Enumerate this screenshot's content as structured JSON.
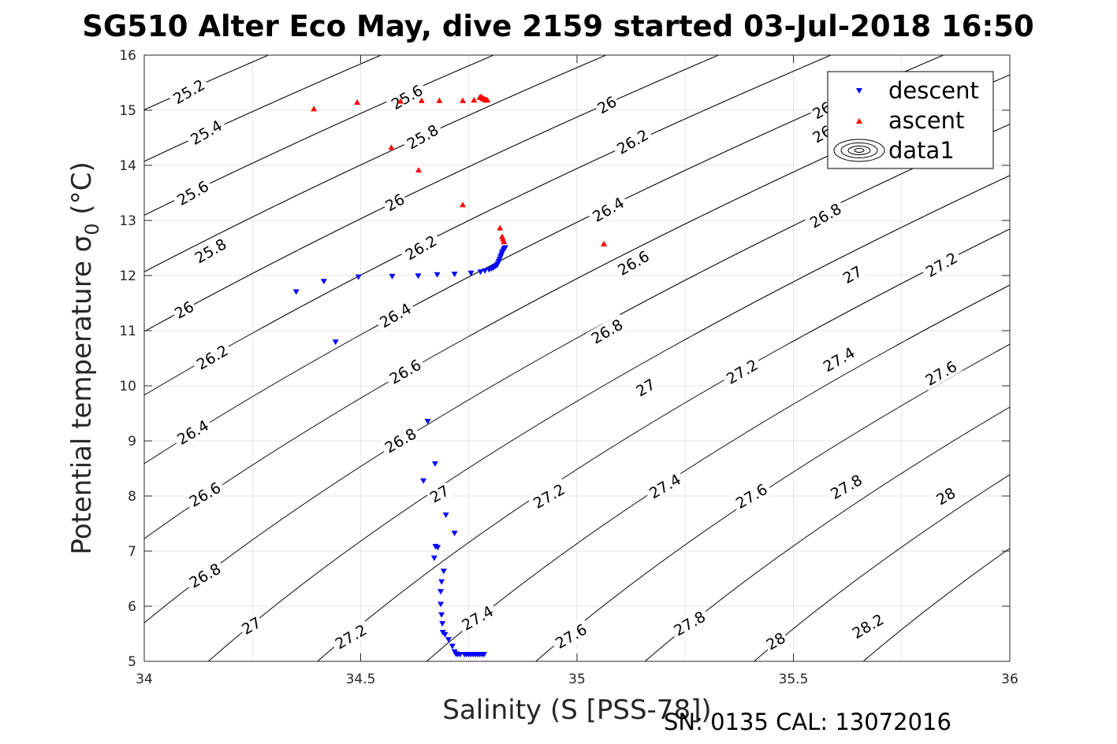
{
  "chart_data": {
    "type": "scatter",
    "title": "SG510 Alter Eco May, dive 2159 started 03-Jul-2018 16:50",
    "xlabel": "Salinity (S [PSS-78])",
    "ylabel": "Potential temperature σ",
    "ylabel_subscript": "0",
    "ylabel_suffix": "(°C)",
    "footer": "SN: 0135  CAL: 13072016",
    "xlim": [
      34,
      36
    ],
    "ylim": [
      5,
      16
    ],
    "xticks": [
      "34",
      "34.5",
      "35",
      "35.5",
      "36"
    ],
    "yticks": [
      "5",
      "6",
      "7",
      "8",
      "9",
      "10",
      "11",
      "12",
      "13",
      "14",
      "15",
      "16"
    ],
    "grid": true,
    "legend_position": "top-right",
    "legend": [
      "descent",
      "ascent",
      "data1"
    ],
    "series": [
      {
        "name": "descent",
        "color": "#0000ff",
        "marker": "triangle-down",
        "x": [
          34.351,
          34.415,
          34.495,
          34.573,
          34.633,
          34.677,
          34.717,
          34.755,
          34.777,
          34.787,
          34.797,
          34.803,
          34.807,
          34.811,
          34.815,
          34.817,
          34.819,
          34.821,
          34.823,
          34.825,
          34.827,
          34.829,
          34.831,
          34.833,
          34.834,
          34.442,
          34.655,
          34.672,
          34.645,
          34.697,
          34.717,
          34.673,
          34.678,
          34.67,
          34.692,
          34.687,
          34.685,
          34.685,
          34.687,
          34.689,
          34.69,
          34.695,
          34.703,
          34.712,
          34.717,
          34.72,
          34.724,
          34.73,
          34.74,
          34.745,
          34.75,
          34.755,
          34.76,
          34.765,
          34.77,
          34.775,
          34.78,
          34.785
        ],
        "y": [
          11.7,
          11.89,
          11.97,
          11.98,
          11.99,
          12.01,
          12.02,
          12.04,
          12.06,
          12.08,
          12.1,
          12.12,
          12.14,
          12.16,
          12.18,
          12.21,
          12.25,
          12.29,
          12.33,
          12.37,
          12.41,
          12.44,
          12.47,
          12.49,
          12.5,
          10.79,
          9.35,
          8.58,
          8.27,
          7.65,
          7.32,
          7.08,
          7.06,
          6.87,
          6.63,
          6.44,
          6.26,
          6.03,
          5.84,
          5.68,
          5.52,
          5.48,
          5.39,
          5.27,
          5.17,
          5.13,
          5.12,
          5.12,
          5.12,
          5.12,
          5.12,
          5.12,
          5.12,
          5.12,
          5.12,
          5.12,
          5.12,
          5.12
        ]
      },
      {
        "name": "ascent",
        "color": "#ff0000",
        "marker": "triangle-up",
        "x": [
          34.392,
          34.492,
          34.592,
          34.641,
          34.682,
          34.736,
          34.762,
          34.775,
          34.777,
          34.779,
          34.781,
          34.783,
          34.785,
          34.787,
          34.789,
          34.791,
          34.793,
          34.571,
          34.634,
          34.736,
          34.822,
          34.827,
          34.829,
          34.831,
          35.062
        ],
        "y": [
          15.03,
          15.15,
          15.17,
          15.18,
          15.18,
          15.18,
          15.19,
          15.24,
          15.25,
          15.24,
          15.23,
          15.22,
          15.21,
          15.2,
          15.2,
          15.19,
          15.19,
          14.33,
          13.92,
          13.29,
          12.87,
          12.71,
          12.67,
          12.62,
          12.58
        ]
      }
    ],
    "contour_series": {
      "name": "data1",
      "color": "#000000",
      "levels": [
        25.2,
        25.4,
        25.6,
        25.8,
        26,
        26.2,
        26.4,
        26.6,
        26.8,
        27,
        27.2,
        27.4,
        27.6,
        27.8,
        28,
        28.2
      ],
      "labels": [
        {
          "text": "25.2",
          "s": 34.103,
          "t": 15.34
        },
        {
          "text": "25.4",
          "s": 34.143,
          "t": 14.6
        },
        {
          "text": "25.6",
          "s": 34.112,
          "t": 13.5
        },
        {
          "text": "25.8",
          "s": 34.153,
          "t": 12.45
        },
        {
          "text": "26",
          "s": 34.092,
          "t": 11.38
        },
        {
          "text": "26.2",
          "s": 34.157,
          "t": 10.52
        },
        {
          "text": "26.4",
          "s": 34.112,
          "t": 9.16
        },
        {
          "text": "26.6",
          "s": 34.14,
          "t": 8.03
        },
        {
          "text": "26.8",
          "s": 34.14,
          "t": 6.56
        },
        {
          "text": "27",
          "s": 34.247,
          "t": 5.65
        },
        {
          "text": "27.2",
          "s": 34.477,
          "t": 5.45
        },
        {
          "text": "25.6",
          "s": 34.607,
          "t": 15.24
        },
        {
          "text": "25.8",
          "s": 34.643,
          "t": 14.52
        },
        {
          "text": "26",
          "s": 34.579,
          "t": 13.33
        },
        {
          "text": "26.2",
          "s": 34.639,
          "t": 12.51
        },
        {
          "text": "26.4",
          "s": 34.58,
          "t": 11.28
        },
        {
          "text": "26.6",
          "s": 34.603,
          "t": 10.26
        },
        {
          "text": "26.8",
          "s": 34.592,
          "t": 9.01
        },
        {
          "text": "27",
          "s": 34.682,
          "t": 8.04
        },
        {
          "text": "27.2",
          "s": 34.935,
          "t": 8.0
        },
        {
          "text": "27.4",
          "s": 34.77,
          "t": 5.79
        },
        {
          "text": "27.6",
          "s": 34.986,
          "t": 5.46
        },
        {
          "text": "26",
          "s": 35.069,
          "t": 15.1
        },
        {
          "text": "26.2",
          "s": 35.128,
          "t": 14.43
        },
        {
          "text": "26.4",
          "s": 35.072,
          "t": 13.2
        },
        {
          "text": "26.6",
          "s": 35.13,
          "t": 12.23
        },
        {
          "text": "26.8",
          "s": 35.069,
          "t": 10.99
        },
        {
          "text": "27",
          "s": 35.158,
          "t": 9.97
        },
        {
          "text": "27.4",
          "s": 35.203,
          "t": 8.18
        },
        {
          "text": "27.8",
          "s": 35.26,
          "t": 5.69
        },
        {
          "text": "28",
          "s": 35.459,
          "t": 5.37
        },
        {
          "text": "27.2",
          "s": 35.381,
          "t": 10.26
        },
        {
          "text": "27.6",
          "s": 35.403,
          "t": 8.0
        },
        {
          "text": "26",
          "s": 35.566,
          "t": 15.0
        },
        {
          "text": "26",
          "s": 35.566,
          "t": 14.57
        },
        {
          "text": "26.8",
          "s": 35.574,
          "t": 13.09
        },
        {
          "text": "27",
          "s": 35.636,
          "t": 12.02
        },
        {
          "text": "27.4",
          "s": 35.605,
          "t": 10.48
        },
        {
          "text": "27.8",
          "s": 35.622,
          "t": 8.17
        },
        {
          "text": "28.2",
          "s": 35.672,
          "t": 5.64
        },
        {
          "text": "27.2",
          "s": 35.842,
          "t": 12.2
        },
        {
          "text": "27.6",
          "s": 35.841,
          "t": 10.23
        },
        {
          "text": "28",
          "s": 35.852,
          "t": 8.0
        }
      ]
    }
  }
}
